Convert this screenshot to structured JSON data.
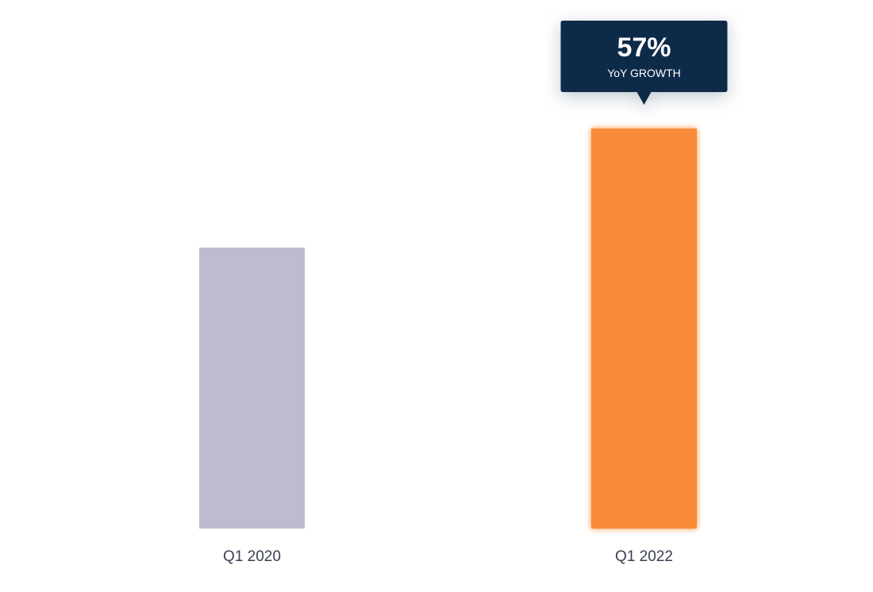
{
  "chart_data": {
    "type": "bar",
    "categories": [
      "Q1 2020",
      "Q1 2022"
    ],
    "values": [
      59,
      84
    ],
    "ylim": [
      0,
      100
    ],
    "colors": [
      "#bdbccf",
      "#f98b39"
    ],
    "grid": false,
    "annotation": {
      "category": "Q1 2022",
      "value_text": "57%",
      "label": "YoY GROWTH",
      "background": "#11294a",
      "text_color": "#ffffff"
    }
  }
}
